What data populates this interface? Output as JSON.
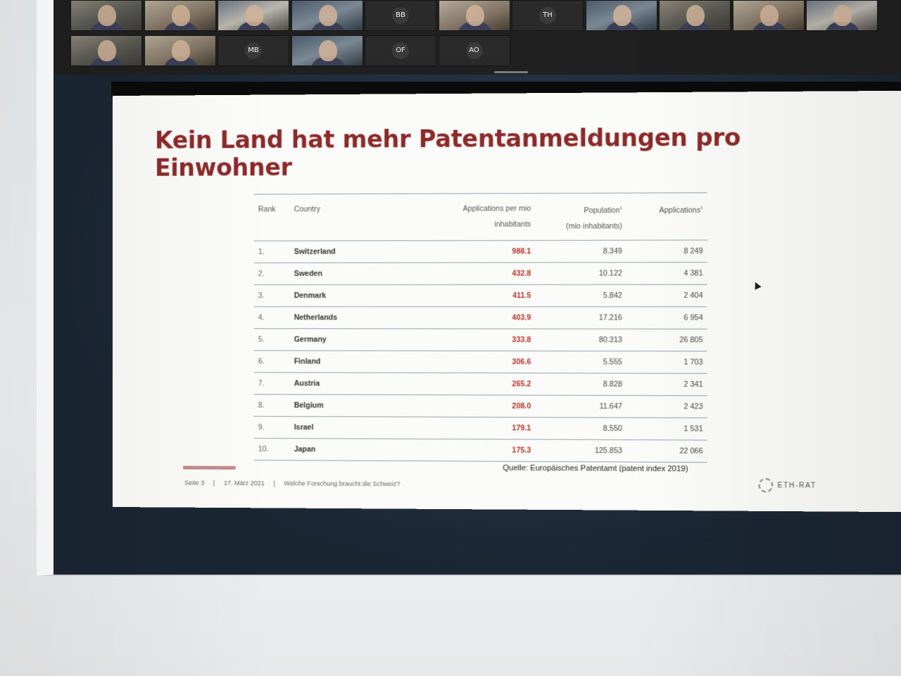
{
  "participants": {
    "row1": [
      {
        "type": "video",
        "initials": ""
      },
      {
        "type": "video",
        "initials": ""
      },
      {
        "type": "video",
        "initials": ""
      },
      {
        "type": "video",
        "initials": ""
      },
      {
        "type": "avatar",
        "initials": "BB"
      },
      {
        "type": "video",
        "initials": ""
      },
      {
        "type": "avatar",
        "initials": "TH"
      },
      {
        "type": "video",
        "initials": ""
      },
      {
        "type": "video",
        "initials": ""
      },
      {
        "type": "video",
        "initials": ""
      },
      {
        "type": "video",
        "initials": ""
      }
    ],
    "row2": [
      {
        "type": "video",
        "initials": ""
      },
      {
        "type": "video",
        "initials": ""
      },
      {
        "type": "avatar",
        "initials": "MB"
      },
      {
        "type": "video",
        "initials": ""
      },
      {
        "type": "avatar",
        "initials": "OF"
      },
      {
        "type": "avatar",
        "initials": "AO"
      }
    ]
  },
  "slide": {
    "title": "Kein Land hat mehr Patentanmeldungen pro Einwohner",
    "table": {
      "headers": {
        "rank": "Rank",
        "country": "Country",
        "apm_line1": "Applications per mio",
        "apm_line2": "inhabitants",
        "pop_line1": "Population",
        "pop_line2": "(mio inhabitants)",
        "app": "Applications",
        "footnote_mark": "1"
      },
      "rows": [
        {
          "rank": "1.",
          "country": "Switzerland",
          "apm": "988.1",
          "pop": "8.349",
          "app": "8 249"
        },
        {
          "rank": "2.",
          "country": "Sweden",
          "apm": "432.8",
          "pop": "10.122",
          "app": "4 381"
        },
        {
          "rank": "3.",
          "country": "Denmark",
          "apm": "411.5",
          "pop": "5.842",
          "app": "2 404"
        },
        {
          "rank": "4.",
          "country": "Netherlands",
          "apm": "403.9",
          "pop": "17.216",
          "app": "6 954"
        },
        {
          "rank": "5.",
          "country": "Germany",
          "apm": "333.8",
          "pop": "80.313",
          "app": "26 805"
        },
        {
          "rank": "6.",
          "country": "Finland",
          "apm": "306.6",
          "pop": "5.555",
          "app": "1 703"
        },
        {
          "rank": "7.",
          "country": "Austria",
          "apm": "265.2",
          "pop": "8.828",
          "app": "2 341"
        },
        {
          "rank": "8.",
          "country": "Belgium",
          "apm": "208.0",
          "pop": "11.647",
          "app": "2 423"
        },
        {
          "rank": "9.",
          "country": "Israel",
          "apm": "179.1",
          "pop": "8.550",
          "app": "1 531"
        },
        {
          "rank": "10.",
          "country": "Japan",
          "apm": "175.3",
          "pop": "125.853",
          "app": "22 066"
        }
      ]
    },
    "source": "Quelle: Europäisches Patentamt (patent index 2019)",
    "footer": {
      "page": "Seite 3",
      "date": "17. März 2021",
      "topic": "Welche Forschung braucht die Schweiz?"
    },
    "logo_text": "ETH-RAT"
  },
  "colors": {
    "title": "#8c2a2a",
    "highlight_value": "#b83227",
    "accent_line": "#c48c8c"
  }
}
